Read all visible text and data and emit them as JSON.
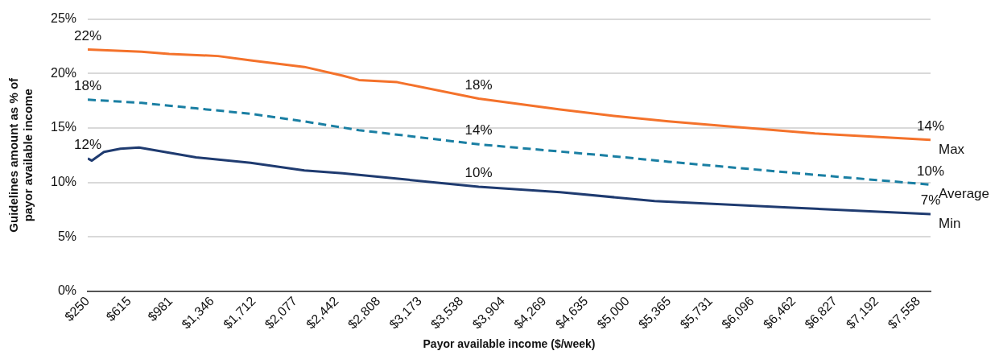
{
  "chart_data": {
    "type": "line",
    "xlabel": "Payor available income ($/week)",
    "ylabel": "Guidelines amount as % of payor available income",
    "xlim": [
      250,
      7665
    ],
    "xticks": [
      {
        "value": 250,
        "label": "$250"
      },
      {
        "value": 615,
        "label": "$615"
      },
      {
        "value": 981,
        "label": "$981"
      },
      {
        "value": 1346,
        "label": "$1,346"
      },
      {
        "value": 1712,
        "label": "$1,712"
      },
      {
        "value": 2077,
        "label": "$2,077"
      },
      {
        "value": 2442,
        "label": "$2,442"
      },
      {
        "value": 2808,
        "label": "$2,808"
      },
      {
        "value": 3173,
        "label": "$3,173"
      },
      {
        "value": 3538,
        "label": "$3,538"
      },
      {
        "value": 3904,
        "label": "$3,904"
      },
      {
        "value": 4269,
        "label": "$4,269"
      },
      {
        "value": 4635,
        "label": "$4,635"
      },
      {
        "value": 5000,
        "label": "$5,000"
      },
      {
        "value": 5365,
        "label": "$5,365"
      },
      {
        "value": 5731,
        "label": "$5,731"
      },
      {
        "value": 6096,
        "label": "$6,096"
      },
      {
        "value": 6462,
        "label": "$6,462"
      },
      {
        "value": 6827,
        "label": "$6,827"
      },
      {
        "value": 7192,
        "label": "$7,192"
      },
      {
        "value": 7558,
        "label": "$7,558"
      }
    ],
    "ylim": [
      0,
      25
    ],
    "yticks": [
      {
        "value": 0,
        "label": "0%"
      },
      {
        "value": 5,
        "label": "5%"
      },
      {
        "value": 10,
        "label": "10%"
      },
      {
        "value": 15,
        "label": "15%"
      },
      {
        "value": 20,
        "label": "20%"
      },
      {
        "value": 25,
        "label": "25%"
      }
    ],
    "grid": "y",
    "legend": false,
    "marker": "none",
    "series": [
      {
        "name": "Max",
        "color": "#f4722b",
        "line_style": "solid",
        "x": [
          250,
          723,
          967,
          1396,
          1683,
          2156,
          2493,
          2636,
          2973,
          3689,
          4406,
          4879,
          5359,
          5932,
          6648,
          7665
        ],
        "values": [
          22.2,
          22.0,
          21.8,
          21.6,
          21.2,
          20.6,
          19.8,
          19.4,
          19.2,
          17.7,
          16.7,
          16.1,
          15.6,
          15.1,
          14.5,
          13.9
        ]
      },
      {
        "name": "Average",
        "color": "#1a7fa3",
        "line_style": "dashed",
        "x": [
          250,
          723,
          1203,
          1683,
          2156,
          2636,
          3689,
          4879,
          5359,
          6648,
          7665
        ],
        "values": [
          17.6,
          17.3,
          16.8,
          16.3,
          15.6,
          14.8,
          13.5,
          12.4,
          11.9,
          10.7,
          9.8
        ]
      },
      {
        "name": "Min",
        "color": "#1f3b70",
        "line_style": "solid",
        "x": [
          250,
          286,
          393,
          537,
          701,
          1203,
          1683,
          2156,
          2493,
          2636,
          3689,
          4406,
          5237,
          6412,
          7665
        ],
        "values": [
          12.2,
          12.0,
          12.8,
          13.1,
          13.2,
          12.3,
          11.8,
          11.1,
          10.85,
          10.7,
          9.6,
          9.1,
          8.3,
          7.7,
          7.1
        ]
      }
    ],
    "annotations": [
      {
        "text": "22%",
        "x": 250,
        "y": 22.2
      },
      {
        "text": "18%",
        "x": 250,
        "y": 17.6
      },
      {
        "text": "12%",
        "x": 250,
        "y": 12.2
      },
      {
        "text": "18%",
        "x": 3689,
        "y": 17.7
      },
      {
        "text": "14%",
        "x": 3689,
        "y": 13.5
      },
      {
        "text": "10%",
        "x": 3689,
        "y": 9.6
      },
      {
        "text": "14%",
        "x": 7665,
        "y": 13.9
      },
      {
        "text": "10%",
        "x": 7665,
        "y": 9.8
      },
      {
        "text": "7%",
        "x": 7665,
        "y": 7.1
      }
    ]
  }
}
